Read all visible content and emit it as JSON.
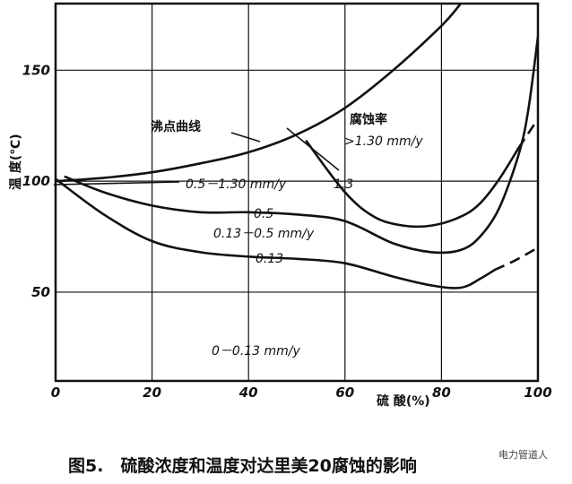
{
  "chart_data": {
    "type": "line",
    "xlabel": "硫 酸(%)",
    "ylabel": "温 度(℃)",
    "xlim": [
      0,
      100
    ],
    "ylim": [
      10,
      180
    ],
    "x_ticks": [
      "0",
      "20",
      "40",
      "60",
      "80",
      "100"
    ],
    "y_ticks": [
      "50",
      "100",
      "150"
    ],
    "grid": true,
    "series": [
      {
        "name": "沸点曲线",
        "dashed_from": null,
        "points": [
          [
            0,
            100
          ],
          [
            10,
            101.5
          ],
          [
            20,
            104
          ],
          [
            30,
            108
          ],
          [
            40,
            113
          ],
          [
            50,
            121
          ],
          [
            60,
            133
          ],
          [
            70,
            150
          ],
          [
            80,
            170
          ],
          [
            84,
            180
          ]
        ]
      },
      {
        "name": "",
        "dashed_from": 96,
        "points": [
          [
            52,
            118
          ],
          [
            60,
            95
          ],
          [
            66,
            84
          ],
          [
            72,
            80
          ],
          [
            78,
            80
          ],
          [
            84,
            84
          ],
          [
            88,
            90
          ],
          [
            92,
            101
          ],
          [
            96,
            115
          ],
          [
            100,
            128
          ]
        ]
      },
      {
        "name": "",
        "dashed_from": null,
        "points": [
          [
            2,
            102
          ],
          [
            10,
            95
          ],
          [
            20,
            89
          ],
          [
            30,
            86
          ],
          [
            40,
            86
          ],
          [
            50,
            85
          ],
          [
            60,
            82
          ],
          [
            70,
            72
          ],
          [
            78,
            68
          ],
          [
            84,
            69
          ],
          [
            88,
            75
          ],
          [
            92,
            88
          ],
          [
            96,
            112
          ],
          [
            98,
            132
          ],
          [
            100,
            165
          ]
        ]
      },
      {
        "name": "",
        "dashed_from": 91,
        "points": [
          [
            0,
            101
          ],
          [
            10,
            85
          ],
          [
            20,
            73
          ],
          [
            30,
            68
          ],
          [
            40,
            66
          ],
          [
            50,
            65
          ],
          [
            60,
            63
          ],
          [
            70,
            57
          ],
          [
            78,
            53
          ],
          [
            84,
            52
          ],
          [
            88,
            56
          ],
          [
            91,
            60
          ],
          [
            95,
            64
          ],
          [
            100,
            70
          ]
        ]
      }
    ],
    "annotations": {
      "boiling_curve": "沸点曲线",
      "corrosion_rate": "腐蚀率",
      "rate_high": ">1.30 mm/y",
      "label_13": "1.3",
      "label_05_13": "0.5－1.30 mm/y",
      "label_05": "0.5",
      "label_013_05": "0.13－0.5 mm/y",
      "label_013": "0.13",
      "label_0_013": "0－0.13 mm/y"
    },
    "title": "图5.　硫酸浓度和温度对达里美20腐蚀的影响"
  },
  "watermark": "电力管道人"
}
